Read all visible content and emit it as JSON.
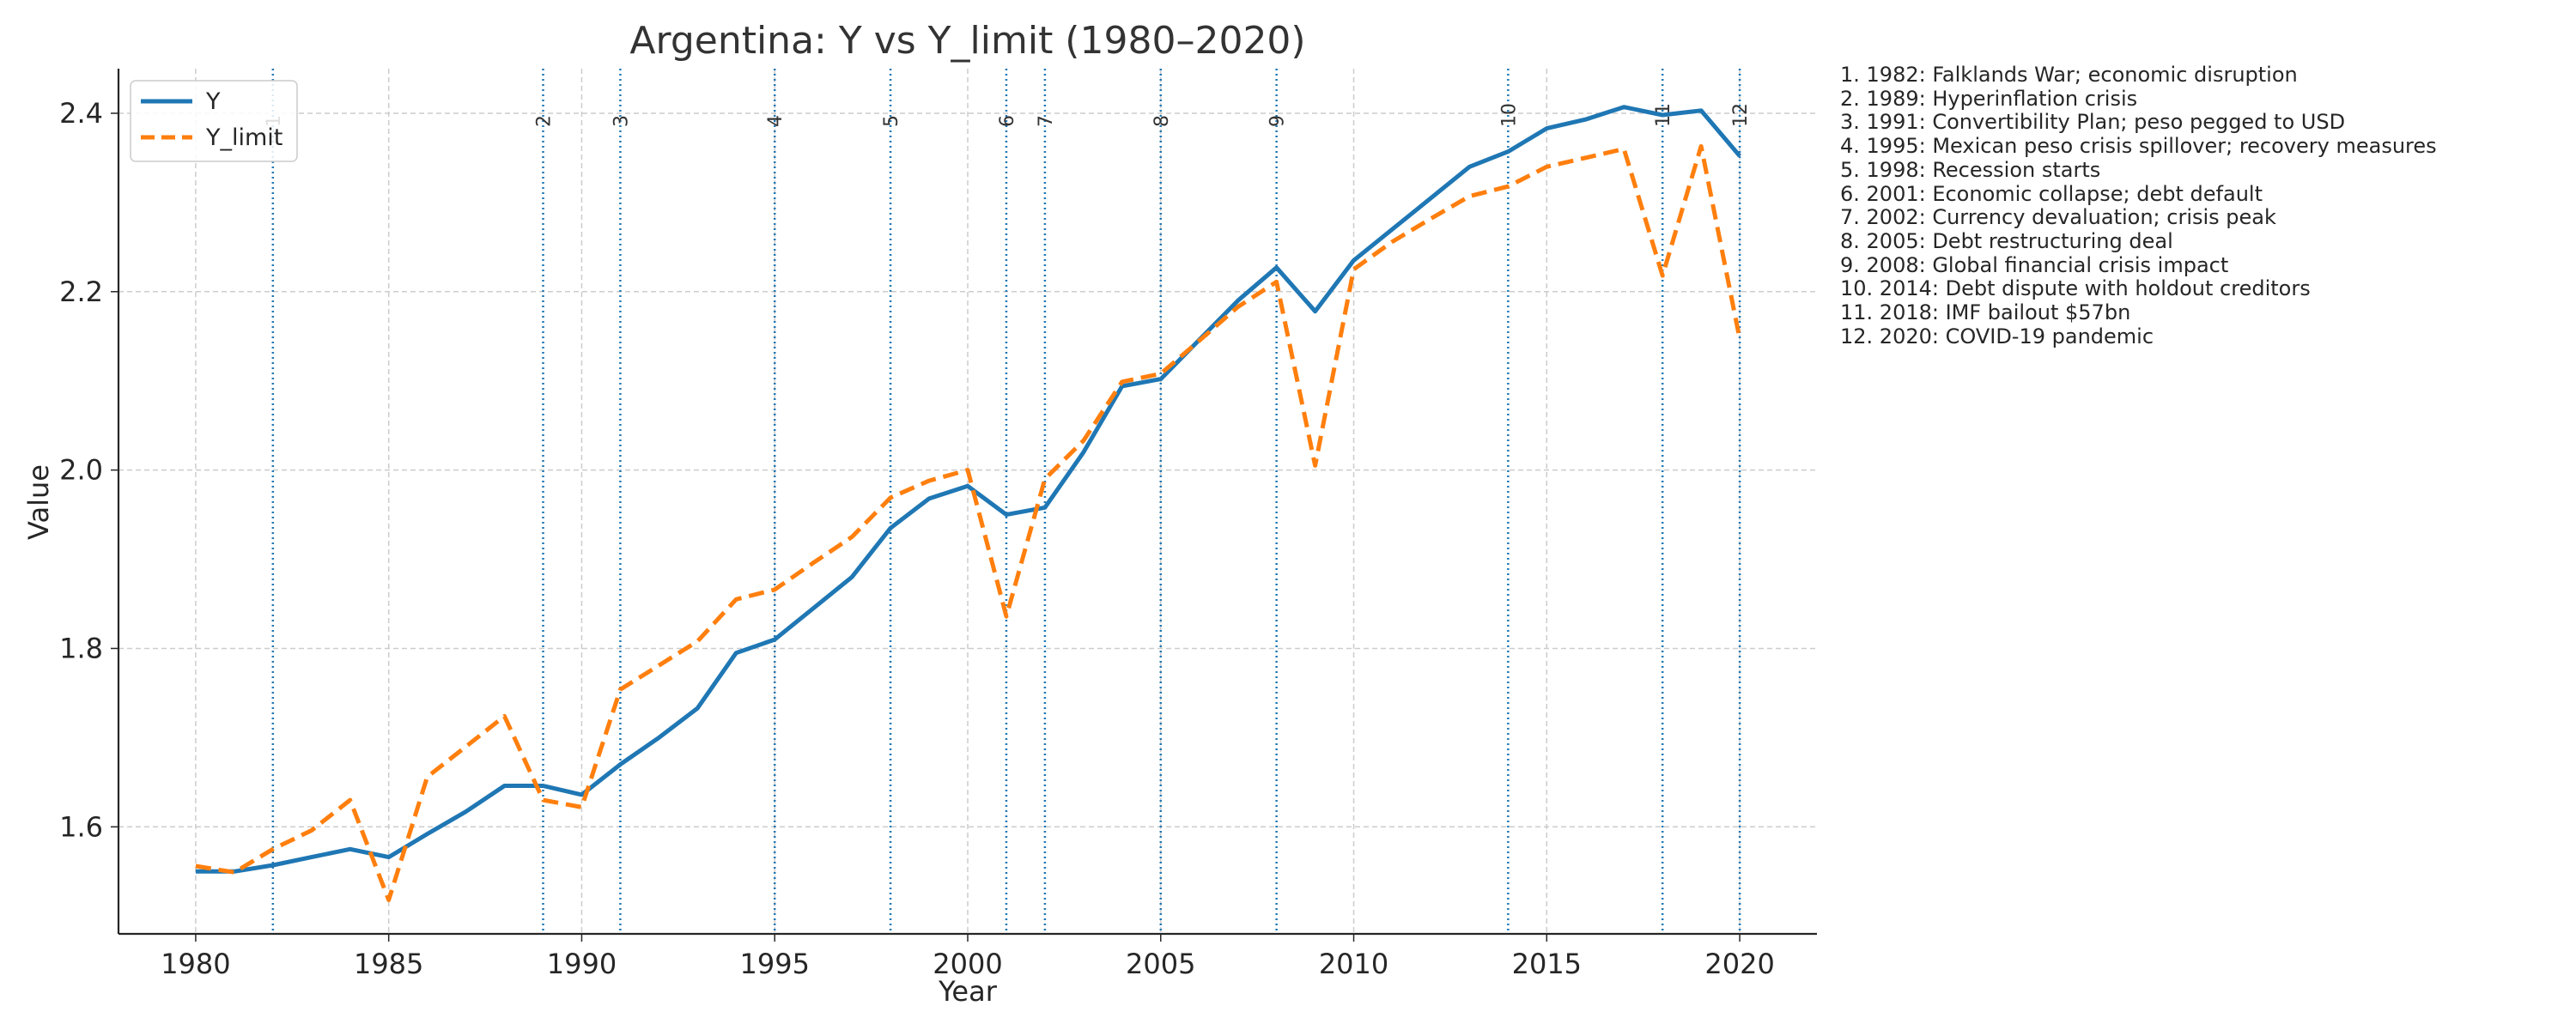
{
  "chart_data": {
    "type": "line",
    "title": "Argentina: Y vs Y_limit (1980–2020)",
    "xlabel": "Year",
    "ylabel": "Value",
    "xlim": [
      1978,
      2022
    ],
    "ylim": [
      1.48,
      2.45
    ],
    "xticks": [
      1980,
      1985,
      1990,
      1995,
      2000,
      2005,
      2010,
      2015,
      2020
    ],
    "yticks": [
      "1.6",
      "1.8",
      "2.0",
      "2.2",
      "2.4"
    ],
    "grid": true,
    "legend": "top-left",
    "x": [
      1980,
      1981,
      1982,
      1983,
      1984,
      1985,
      1986,
      1987,
      1988,
      1989,
      1990,
      1991,
      1992,
      1993,
      1994,
      1995,
      1996,
      1997,
      1998,
      1999,
      2000,
      2001,
      2002,
      2003,
      2004,
      2005,
      2006,
      2007,
      2008,
      2009,
      2010,
      2011,
      2012,
      2013,
      2014,
      2015,
      2016,
      2017,
      2018,
      2019,
      2020
    ],
    "series": [
      {
        "name": "Y",
        "color": "#1f77b4",
        "style": "solid",
        "values": [
          1.55,
          1.55,
          1.557,
          1.566,
          1.575,
          1.566,
          1.592,
          1.617,
          1.646,
          1.646,
          1.636,
          1.67,
          1.7,
          1.733,
          1.795,
          1.81,
          1.845,
          1.88,
          1.935,
          1.968,
          1.982,
          1.95,
          1.958,
          2.02,
          2.094,
          2.102,
          2.146,
          2.19,
          2.227,
          2.178,
          2.235,
          2.27,
          2.305,
          2.34,
          2.357,
          2.383,
          2.393,
          2.407,
          2.398,
          2.403,
          2.352
        ]
      },
      {
        "name": "Y_limit",
        "color": "#ff7f0e",
        "style": "dashed",
        "values": [
          1.556,
          1.549,
          1.575,
          1.596,
          1.63,
          1.518,
          1.656,
          1.69,
          1.724,
          1.63,
          1.622,
          1.754,
          1.781,
          1.808,
          1.855,
          1.866,
          1.896,
          1.925,
          1.969,
          1.988,
          2.0,
          1.836,
          1.99,
          2.033,
          2.099,
          2.108,
          2.145,
          2.183,
          2.211,
          2.005,
          2.225,
          2.256,
          2.282,
          2.307,
          2.318,
          2.34,
          2.35,
          2.36,
          2.218,
          2.363,
          2.147
        ]
      }
    ],
    "event_color": "#1f77b4",
    "events": [
      {
        "num": "1",
        "year": 1982,
        "text": "1. 1982: Falklands War; economic disruption"
      },
      {
        "num": "2",
        "year": 1989,
        "text": "2. 1989: Hyperinflation crisis"
      },
      {
        "num": "3",
        "year": 1991,
        "text": "3. 1991: Convertibility Plan; peso pegged to USD"
      },
      {
        "num": "4",
        "year": 1995,
        "text": "4. 1995: Mexican peso crisis spillover; recovery measures"
      },
      {
        "num": "5",
        "year": 1998,
        "text": "5. 1998: Recession starts"
      },
      {
        "num": "6",
        "year": 2001,
        "text": "6. 2001: Economic collapse; debt default"
      },
      {
        "num": "7",
        "year": 2002,
        "text": "7. 2002: Currency devaluation; crisis peak"
      },
      {
        "num": "8",
        "year": 2005,
        "text": "8. 2005: Debt restructuring deal"
      },
      {
        "num": "9",
        "year": 2008,
        "text": "9. 2008: Global financial crisis impact"
      },
      {
        "num": "10",
        "year": 2014,
        "text": "10. 2014: Debt dispute with holdout creditors"
      },
      {
        "num": "11",
        "year": 2018,
        "text": "11. 2018: IMF bailout $57bn"
      },
      {
        "num": "12",
        "year": 2020,
        "text": "12. 2020: COVID-19 pandemic"
      }
    ]
  }
}
